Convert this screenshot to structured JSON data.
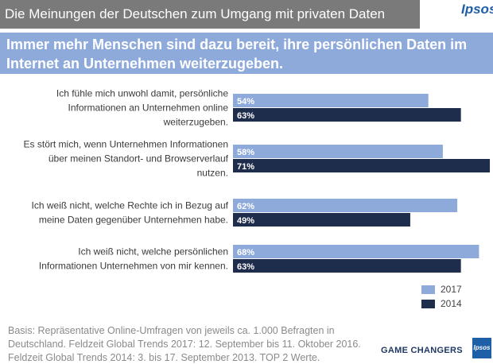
{
  "header": {
    "title": "Die Meinungen der Deutschen zum Umgang mit privaten Daten",
    "logo": "Ipsos",
    "headline_lines": [
      "Immer mehr Menschen sind dazu bereit, ihre persönlichen Daten im",
      "Internet an Unternehmen weiterzugeben."
    ]
  },
  "colors": {
    "series_2017": "#8eaadb",
    "series_2014": "#1f2d4d",
    "title_bar": "#7a7a7a",
    "headline_bar": "#8eaadb"
  },
  "chart_data": {
    "type": "bar",
    "orientation": "horizontal",
    "categories": [
      "Ich fühle mich unwohl damit, persönliche Informationen an Unternehmen online weiterzugeben.",
      "Es stört mich, wenn Unternehmen Informationen über meinen Standort- und Browserverlauf nutzen.",
      "Ich weiß nicht, welche Rechte ich in Bezug auf meine Daten gegenüber Unternehmen habe.",
      "Ich weiß nicht, welche persönlichen Informationen Unternehmen von mir kennen."
    ],
    "category_lines": [
      [
        "Ich fühle mich unwohl damit, persönliche",
        "Informationen an Unternehmen online",
        "weiterzugeben."
      ],
      [
        "Es stört mich, wenn Unternehmen Informationen",
        "über meinen Standort- und Browserverlauf",
        "nutzen."
      ],
      [
        "Ich weiß nicht, welche Rechte ich in Bezug auf",
        "meine Daten gegenüber Unternehmen habe."
      ],
      [
        "Ich weiß nicht, welche persönlichen",
        "Informationen Unternehmen von mir kennen."
      ]
    ],
    "series": [
      {
        "name": "2017",
        "values": [
          54,
          58,
          62,
          68
        ],
        "labels": [
          "54%",
          "58%",
          "62%",
          "68%"
        ]
      },
      {
        "name": "2014",
        "values": [
          63,
          71,
          49,
          63
        ],
        "labels": [
          "63%",
          "71%",
          "49%",
          "63%"
        ]
      }
    ],
    "legend_position": "bottom-right",
    "unit": "%"
  },
  "footnote": {
    "lines": [
      "Basis: Repräsentative Online-Umfragen von jeweils ca. 1.000 Befragten in",
      "Deutschland. Feldzeit Global Trends 2017: 12. September bis 11. Oktober 2016.",
      "Feldzeit Global Trends 2014: 3. bis 17. September 2013. TOP 2 Werte."
    ]
  },
  "branding": {
    "tagline": "GAME CHANGERS",
    "small_logo": "Ipsos"
  }
}
